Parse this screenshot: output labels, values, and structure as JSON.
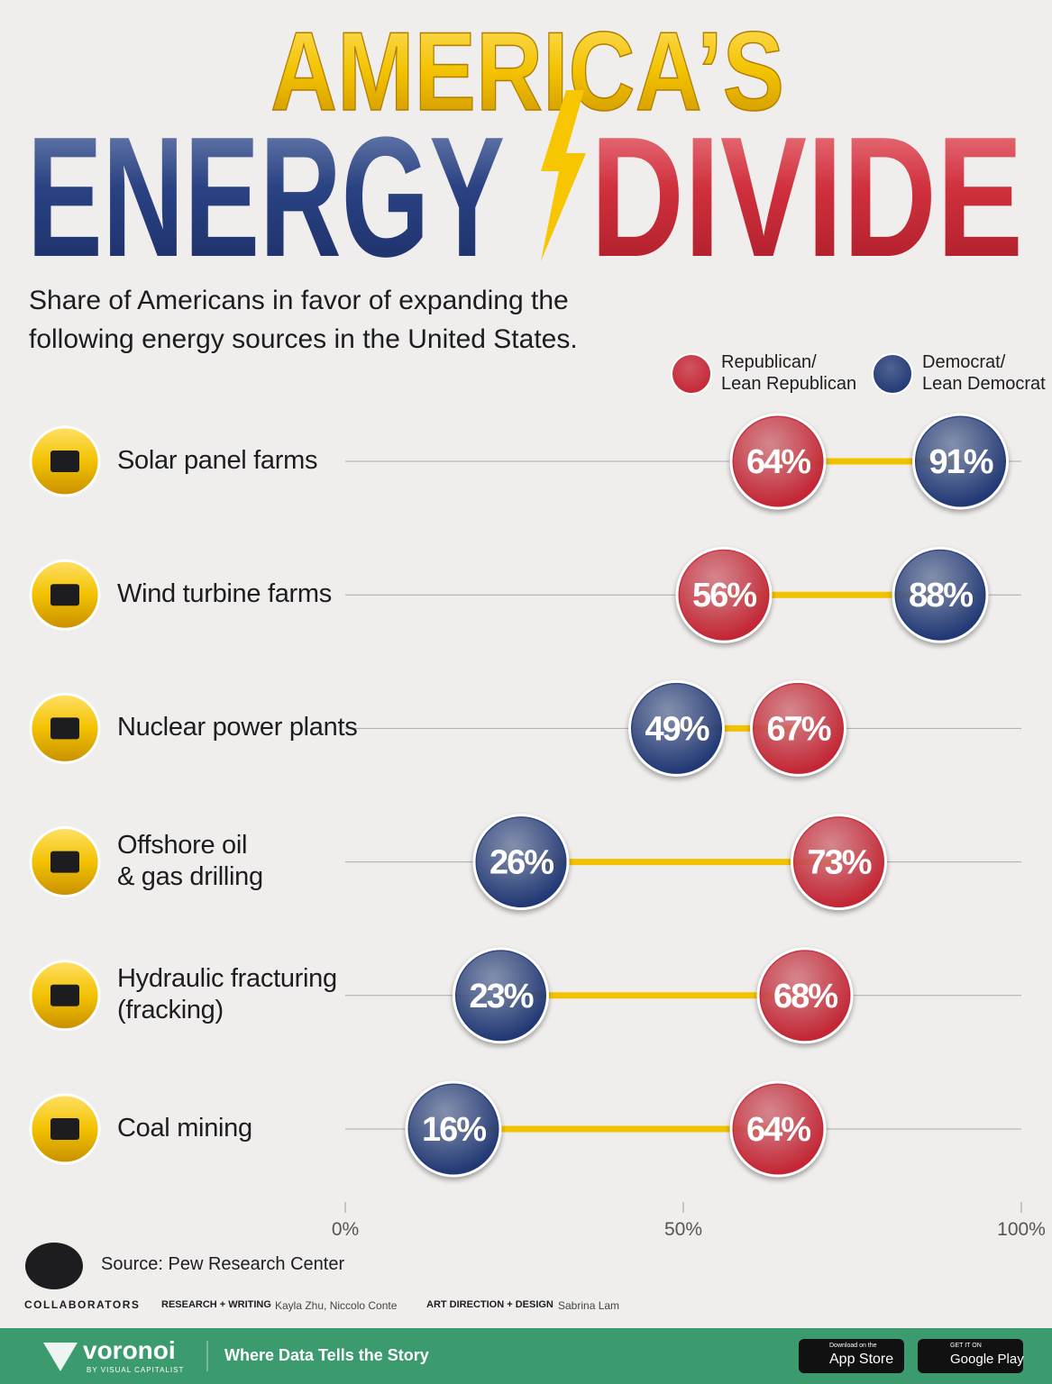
{
  "chart_data": {
    "type": "dumbbell",
    "title_top": "AMERICA’S",
    "title_left": "ENERGY",
    "title_right": "DIVIDE",
    "subtitle": "Share of Americans in favor of expanding the\nfollowing energy sources in the United States.",
    "categories": [
      "Solar panel farms",
      "Wind turbine farms",
      "Nuclear power plants",
      "Offshore oil\n& gas drilling",
      "Hydraulic fracturing\n(fracking)",
      "Coal mining"
    ],
    "series": [
      {
        "name": "Republican/\nLean Republican",
        "color": "#c42231",
        "values": [
          64,
          56,
          67,
          73,
          68,
          64
        ],
        "value_labels": [
          "64%",
          "56%",
          "67%",
          "73%",
          "68%",
          "64%"
        ]
      },
      {
        "name": "Democrat/\nLean Democrat",
        "color": "#1d3573",
        "values": [
          91,
          88,
          49,
          26,
          23,
          16
        ],
        "value_labels": [
          "91%",
          "88%",
          "49%",
          "26%",
          "23%",
          "16%"
        ]
      }
    ],
    "connector_color": "#f2c200",
    "xlim": [
      0,
      100
    ],
    "xticks": [
      {
        "value": 0,
        "label": "0%"
      },
      {
        "value": 50,
        "label": "50%"
      },
      {
        "value": 100,
        "label": "100%"
      }
    ]
  },
  "footer": {
    "source": "Source: Pew Research Center",
    "collaborators": "COLLABORATORS",
    "research_label": "RESEARCH + WRITING",
    "research_names": "Kayla Zhu, Niccolo Conte",
    "design_label": "ART DIRECTION + DESIGN",
    "design_names": "Sabrina Lam",
    "brand": "voronoi",
    "brand_sub": "BY VISUAL CAPITALIST",
    "tagline": "Where Data Tells the Story",
    "app_store_small": "Download on the",
    "app_store": "App Store",
    "google_small": "GET IT ON",
    "google": "Google Play"
  }
}
